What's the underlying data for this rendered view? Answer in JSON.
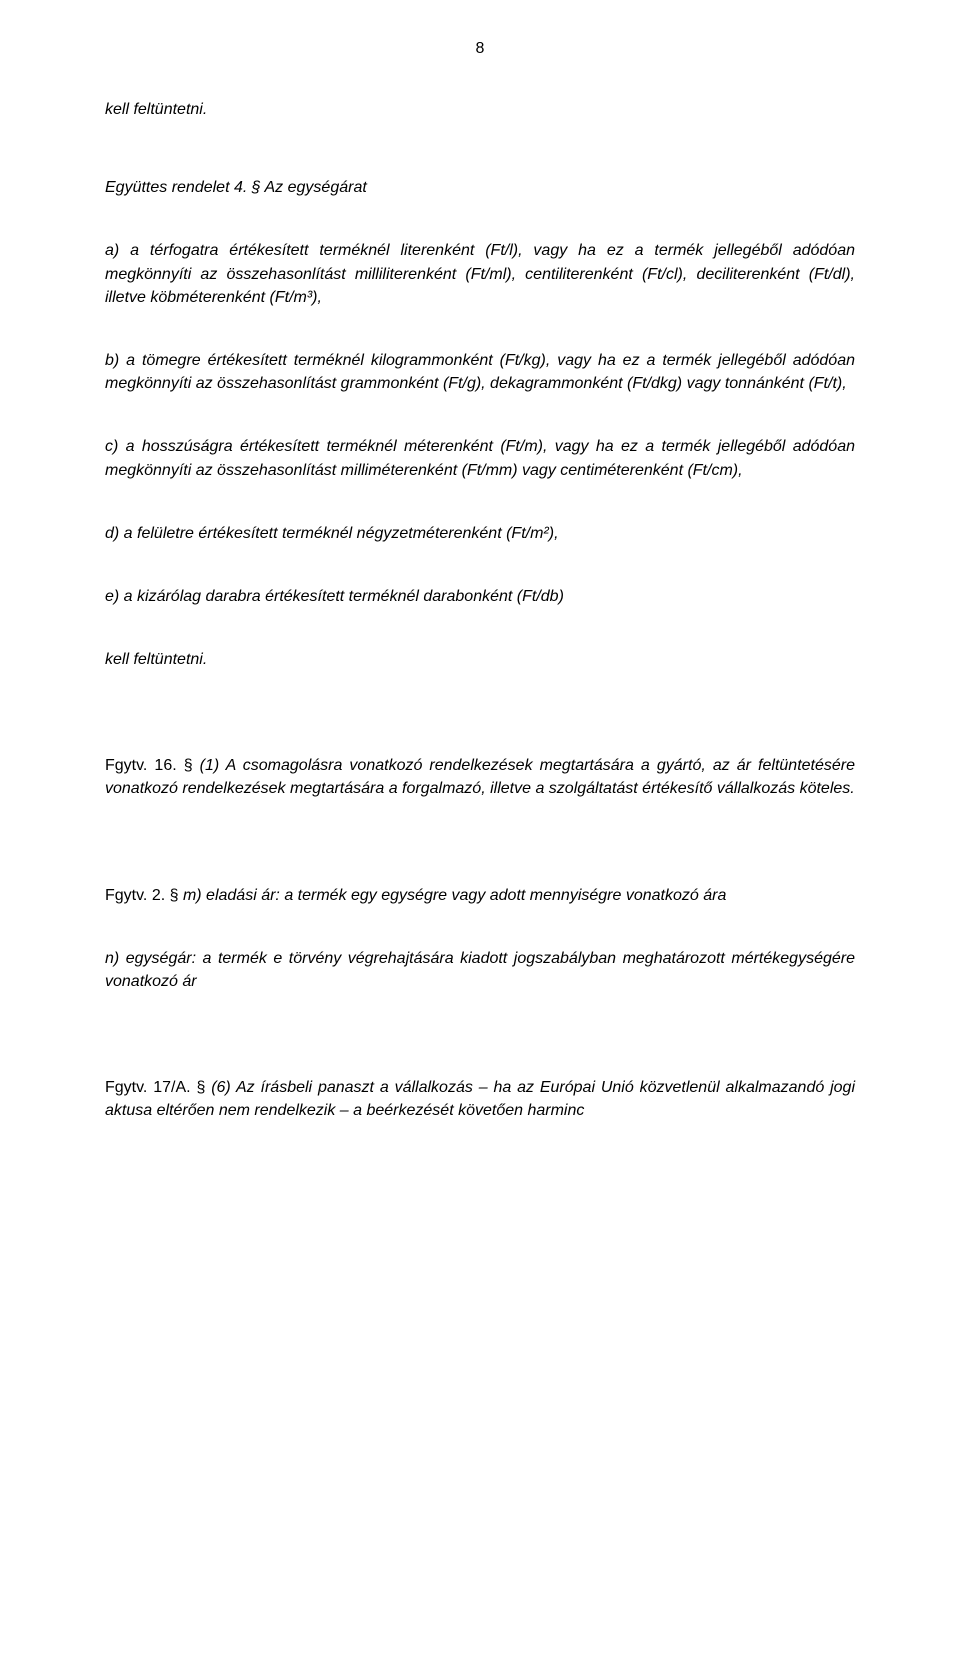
{
  "meta": {
    "pageNumber": "8"
  },
  "paragraphs": {
    "p1": "kell feltüntetni.",
    "p2": "Együttes rendelet 4. § Az egységárat",
    "p3": "a) a térfogatra értékesített terméknél literenként (Ft/l), vagy ha ez a termék jellegéből adódóan megkönnyíti az összehasonlítást milliliterenként (Ft/ml), centiliterenként (Ft/cl), deciliterenként (Ft/dl), illetve köbméterenként (Ft/m³),",
    "p4": "b) a tömegre értékesített terméknél kilogrammonként (Ft/kg), vagy ha ez a termék jellegéből adódóan megkönnyíti az összehasonlítást grammonként (Ft/g), dekagrammonként (Ft/dkg) vagy tonnánként (Ft/t),",
    "p5": "c) a hosszúságra értékesített terméknél méterenként (Ft/m), vagy ha ez a termék jellegéből adódóan megkönnyíti az összehasonlítást milliméterenként (Ft/mm) vagy centiméterenként (Ft/cm),",
    "p6": "d) a felületre értékesített terméknél négyzetméterenként (Ft/m²),",
    "p7": "e) a kizárólag darabra értékesített terméknél darabonként (Ft/db)",
    "p8": "kell feltüntetni.",
    "p9a": "Fgytv. 16. § ",
    "p9b": "(1) A csomagolásra vonatkozó rendelkezések megtartására a gyártó, az ár feltüntetésére vonatkozó rendelkezések megtartására a forgalmazó, illetve a szolgáltatást értékesítő vállalkozás köteles.",
    "p10a": "Fgytv. 2. § ",
    "p10b": "m) eladási ár: a termék egy egységre vagy adott mennyiségre vonatkozó ára",
    "p11": "n) egységár: a termék e törvény végrehajtására kiadott jogszabályban meghatározott mértékegységére vonatkozó ár",
    "p12a": "Fgytv. 17/A. § ",
    "p12b": "(6) Az írásbeli panaszt a vállalkozás – ha az Európai Unió közvetlenül alkalmazandó jogi aktusa eltérően nem rendelkezik – a beérkezését követően harminc"
  }
}
